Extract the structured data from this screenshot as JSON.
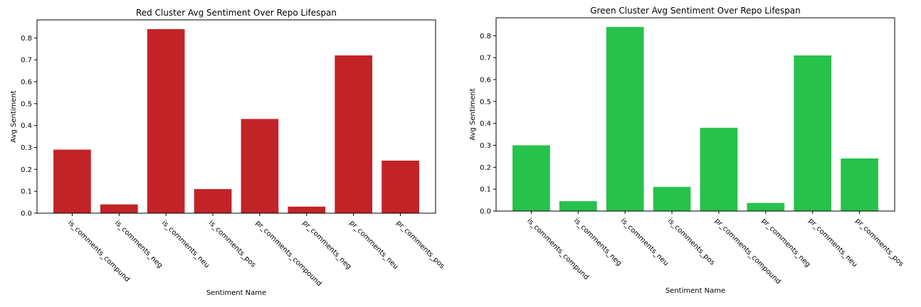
{
  "chart_data": [
    {
      "type": "bar",
      "title": "Red Cluster Avg Sentiment Over Repo Lifespan",
      "xlabel": "Sentiment Name",
      "ylabel": "Avg Sentiment",
      "categories": [
        "is_comments_compund",
        "is_comments_neg",
        "is_comments_neu",
        "is_comments_pos",
        "pr_comments_compound",
        "pr_comments_neg",
        "pr_comments_neu",
        "pr_comments_pos"
      ],
      "values": [
        0.29,
        0.04,
        0.84,
        0.11,
        0.43,
        0.03,
        0.72,
        0.24
      ],
      "ylim": [
        0,
        0.882
      ],
      "yticks": [
        0.0,
        0.1,
        0.2,
        0.3,
        0.4,
        0.5,
        0.6,
        0.7,
        0.8
      ],
      "ytick_labels": [
        "0.0",
        "0.1",
        "0.2",
        "0.3",
        "0.4",
        "0.5",
        "0.6",
        "0.7",
        "0.8"
      ],
      "color": "#c22327",
      "grid": false
    },
    {
      "type": "bar",
      "title": "Green Cluster Avg Sentiment Over Repo Lifespan",
      "xlabel": "Sentiment Name",
      "ylabel": "Avg Sentiment",
      "categories": [
        "is_comments_compund",
        "is_comments_neg",
        "is_comments_neu",
        "is_comments_pos",
        "pr_comments_compound",
        "pr_comments_neg",
        "pr_comments_neu",
        "pr_comments_pos"
      ],
      "values": [
        0.3,
        0.045,
        0.84,
        0.11,
        0.38,
        0.037,
        0.71,
        0.24
      ],
      "ylim": [
        0,
        0.882
      ],
      "yticks": [
        0.0,
        0.1,
        0.2,
        0.3,
        0.4,
        0.5,
        0.6,
        0.7,
        0.8
      ],
      "ytick_labels": [
        "0.0",
        "0.1",
        "0.2",
        "0.3",
        "0.4",
        "0.5",
        "0.6",
        "0.7",
        "0.8"
      ],
      "color": "#27c24b",
      "grid": false
    }
  ]
}
